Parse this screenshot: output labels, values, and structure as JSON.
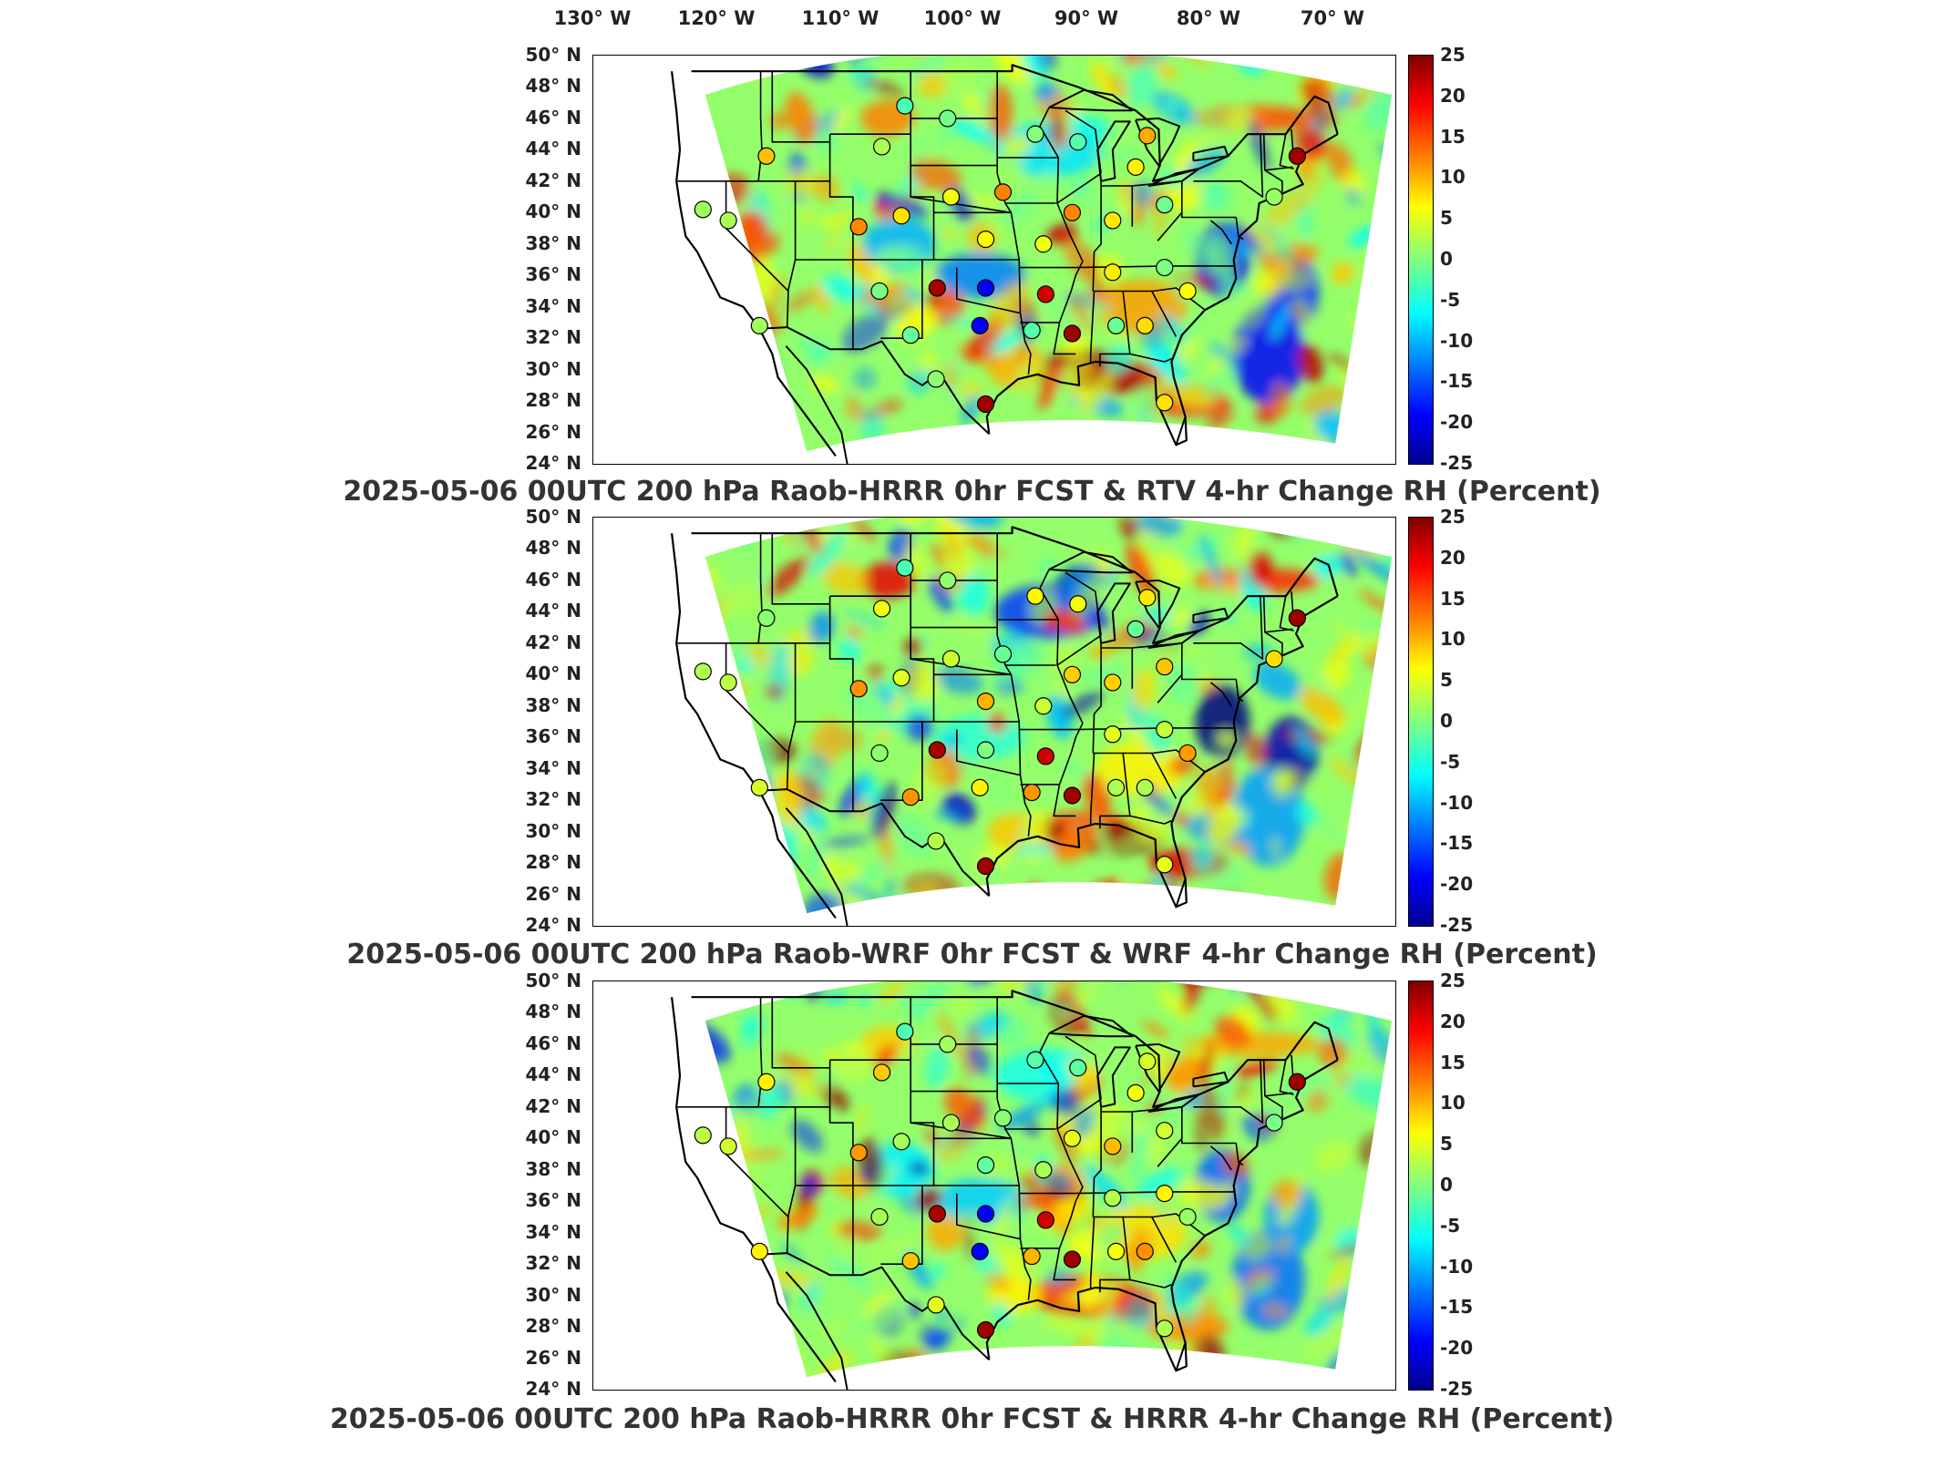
{
  "longitude_labels": [
    "130° W",
    "120° W",
    "110° W",
    "100° W",
    "90° W",
    "80° W",
    "70° W"
  ],
  "latitude_labels": [
    "50° N",
    "48° N",
    "46° N",
    "44° N",
    "42° N",
    "40° N",
    "38° N",
    "36° N",
    "34° N",
    "32° N",
    "30° N",
    "28° N",
    "26° N",
    "24° N"
  ],
  "colorbar": {
    "ticks": [
      "25",
      "20",
      "15",
      "10",
      "5",
      "0",
      "-5",
      "-10",
      "-15",
      "-20",
      "-25"
    ],
    "colormap": "jet",
    "range": [
      -25,
      25
    ],
    "units": "Percent"
  },
  "panels": [
    {
      "title": "2025-05-06 00UTC 200 hPa Raob-HRRR 0hr FCST & RTV 4-hr Change RH (Percent)"
    },
    {
      "title": "2025-05-06 00UTC 200 hPa Raob-WRF 0hr FCST & WRF 4-hr Change RH (Percent)"
    },
    {
      "title": "2025-05-06 00UTC 200 hPa Raob-HRRR 0hr FCST & HRRR 4-hr Change RH (Percent)"
    }
  ],
  "stations": [
    {
      "lon": -104.5,
      "lat": 46.8
    },
    {
      "lon": -100.8,
      "lat": 46.0
    },
    {
      "lon": -93.2,
      "lat": 45.0
    },
    {
      "lon": -106.5,
      "lat": 44.2
    },
    {
      "lon": -89.5,
      "lat": 44.5
    },
    {
      "lon": -83.5,
      "lat": 44.9
    },
    {
      "lon": -84.5,
      "lat": 42.9
    },
    {
      "lon": -122,
      "lat": 40.2
    },
    {
      "lon": -119.8,
      "lat": 39.5
    },
    {
      "lon": -108.5,
      "lat": 39.1
    },
    {
      "lon": -100.5,
      "lat": 41.0
    },
    {
      "lon": -96,
      "lat": 41.3
    },
    {
      "lon": -90,
      "lat": 40.0
    },
    {
      "lon": -86.5,
      "lat": 39.5
    },
    {
      "lon": -82,
      "lat": 40.5
    },
    {
      "lon": -116.5,
      "lat": 43.6
    },
    {
      "lon": -104.8,
      "lat": 39.8
    },
    {
      "lon": -97.5,
      "lat": 38.3
    },
    {
      "lon": -92.5,
      "lat": 38.0
    },
    {
      "lon": -106.7,
      "lat": 35.0
    },
    {
      "lon": -101.7,
      "lat": 35.2
    },
    {
      "lon": -97.5,
      "lat": 35.2
    },
    {
      "lon": -92.3,
      "lat": 34.8
    },
    {
      "lon": -86.5,
      "lat": 36.2
    },
    {
      "lon": -82,
      "lat": 36.5
    },
    {
      "lon": -80,
      "lat": 35.0
    },
    {
      "lon": -104,
      "lat": 32.2
    },
    {
      "lon": -98,
      "lat": 32.8
    },
    {
      "lon": -93.5,
      "lat": 32.5
    },
    {
      "lon": -90,
      "lat": 32.3
    },
    {
      "lon": -86.2,
      "lat": 32.8
    },
    {
      "lon": -83.7,
      "lat": 32.8
    },
    {
      "lon": -101.8,
      "lat": 29.4
    },
    {
      "lon": -97.5,
      "lat": 27.8
    },
    {
      "lon": -82,
      "lat": 27.9
    },
    {
      "lon": -117.1,
      "lat": 32.8
    },
    {
      "lon": -70.5,
      "lat": 43.6
    },
    {
      "lon": -72.5,
      "lat": 41.0
    }
  ]
}
